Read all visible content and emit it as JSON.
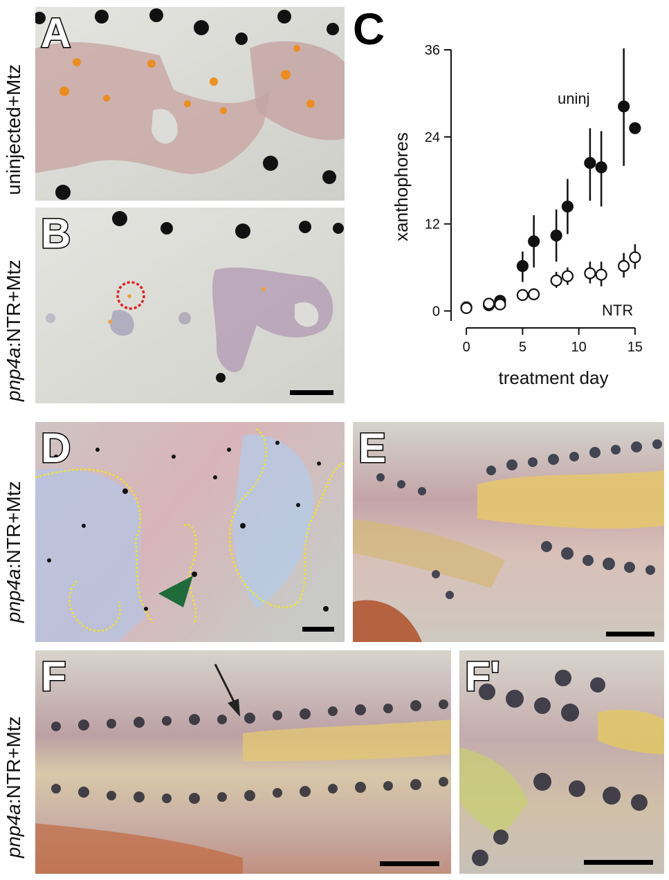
{
  "panels": {
    "A": {
      "letter": "A"
    },
    "B": {
      "letter": "B"
    },
    "C": {
      "letter": "C"
    },
    "D": {
      "letter": "D"
    },
    "E": {
      "letter": "E"
    },
    "F": {
      "letter": "F"
    },
    "Fp": {
      "letter": "F'"
    }
  },
  "side_labels": {
    "A": {
      "text": "uninjected+Mtz"
    },
    "B": {
      "gene": "pnp4a",
      "suffix": ":NTR+Mtz"
    },
    "D": {
      "gene": "pnp4a",
      "suffix": ":NTR+Mtz"
    },
    "F": {
      "gene": "pnp4a",
      "suffix": ":NTR+Mtz"
    }
  },
  "colors": {
    "background_tissue": "#dcdcd8",
    "melanophore": "#111111",
    "xanthophore": "#f08a10",
    "iridophore_outline": "#f3e41a",
    "arrowhead": "#1f6b3a",
    "marker_circle": "#e02020"
  },
  "chart_data": {
    "type": "scatter",
    "xlabel": "treatment day",
    "ylabel": "xanthophores",
    "xlim": [
      -0.5,
      15.5
    ],
    "ylim": [
      -1,
      36
    ],
    "xticks": [
      0,
      5,
      10,
      15
    ],
    "yticks": [
      0,
      12,
      24,
      36
    ],
    "grid": false,
    "series": [
      {
        "name": "uninj",
        "marker": "filled-circle",
        "points": [
          {
            "x": 0,
            "y": 0.5,
            "lo": 0.5,
            "hi": 0.5
          },
          {
            "x": 2,
            "y": 0.8,
            "lo": 0.6,
            "hi": 1.0
          },
          {
            "x": 3,
            "y": 1.4,
            "lo": 1.2,
            "hi": 1.6
          },
          {
            "x": 5,
            "y": 6.2,
            "lo": 4.0,
            "hi": 8.2
          },
          {
            "x": 6,
            "y": 9.6,
            "lo": 6.0,
            "hi": 13.2
          },
          {
            "x": 8,
            "y": 10.4,
            "lo": 6.8,
            "hi": 14.0
          },
          {
            "x": 9,
            "y": 14.4,
            "lo": 10.6,
            "hi": 18.2
          },
          {
            "x": 11,
            "y": 20.4,
            "lo": 15.2,
            "hi": 25.2
          },
          {
            "x": 12,
            "y": 19.8,
            "lo": 14.4,
            "hi": 24.8
          },
          {
            "x": 14,
            "y": 28.2,
            "lo": 20.0,
            "hi": 36.2
          },
          {
            "x": 15,
            "y": 25.2,
            "lo": 25.2,
            "hi": 25.2
          }
        ]
      },
      {
        "name": "NTR",
        "marker": "open-circle",
        "points": [
          {
            "x": 0,
            "y": 0.4,
            "lo": 0.4,
            "hi": 0.4
          },
          {
            "x": 2,
            "y": 1.0,
            "lo": 0.8,
            "hi": 1.2
          },
          {
            "x": 3,
            "y": 0.9,
            "lo": 0.7,
            "hi": 1.1
          },
          {
            "x": 5,
            "y": 2.2,
            "lo": 2.0,
            "hi": 2.4
          },
          {
            "x": 6,
            "y": 2.3,
            "lo": 2.1,
            "hi": 2.5
          },
          {
            "x": 8,
            "y": 4.2,
            "lo": 3.2,
            "hi": 5.4
          },
          {
            "x": 9,
            "y": 4.8,
            "lo": 3.6,
            "hi": 6.0
          },
          {
            "x": 11,
            "y": 5.2,
            "lo": 3.8,
            "hi": 6.8
          },
          {
            "x": 12,
            "y": 5.0,
            "lo": 3.4,
            "hi": 6.8
          },
          {
            "x": 14,
            "y": 6.2,
            "lo": 4.6,
            "hi": 8.0
          },
          {
            "x": 15,
            "y": 7.4,
            "lo": 5.8,
            "hi": 9.2
          }
        ]
      }
    ],
    "annotations": [
      {
        "text": "uninj",
        "series": "uninj"
      },
      {
        "text": "NTR",
        "series": "NTR"
      }
    ]
  }
}
